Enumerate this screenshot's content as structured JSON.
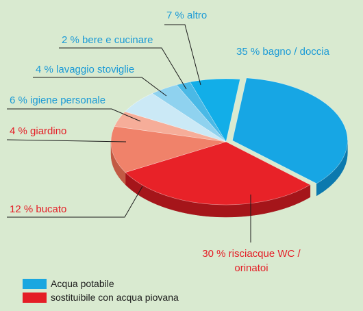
{
  "chart_data": {
    "type": "pie",
    "style": "3d-exploded",
    "slices": [
      {
        "label": "35 % bagno / doccia",
        "value": 35,
        "group": "potable"
      },
      {
        "label": "30 % risciacque WC / orinatoi",
        "value": 30,
        "group": "rain"
      },
      {
        "label": "12 % bucato",
        "value": 12,
        "group": "rain"
      },
      {
        "label": "4 % giardino",
        "value": 4,
        "group": "rain"
      },
      {
        "label": "6 % igiene personale",
        "value": 6,
        "group": "potable"
      },
      {
        "label": "4 % lavaggio stoviglie",
        "value": 4,
        "group": "potable"
      },
      {
        "label": "2 % bere e cucinare",
        "value": 2,
        "group": "potable"
      },
      {
        "label": "7 % altro",
        "value": 7,
        "group": "potable"
      }
    ],
    "legend": [
      {
        "label": "Acqua potabile",
        "color": "#1aa7e0"
      },
      {
        "label": "sostituibile con acqua piovana",
        "color": "#e41e26"
      }
    ],
    "colors": {
      "background": "#d9ead0",
      "potable_label": "#1a9ad6",
      "rain_label": "#e41e26"
    }
  }
}
